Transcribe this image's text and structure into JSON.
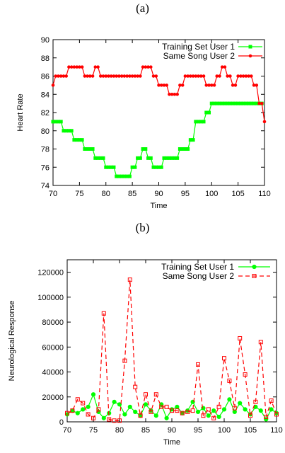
{
  "captions": {
    "top": "(a)",
    "bottom": "(b)"
  },
  "chart_data": [
    {
      "type": "line",
      "xlabel": "Time",
      "ylabel": "Heart Rate",
      "xlim": [
        70,
        110
      ],
      "ylim": [
        74,
        90
      ],
      "xticks": [
        70,
        75,
        80,
        85,
        90,
        95,
        100,
        105,
        110
      ],
      "yticks": [
        74,
        76,
        78,
        80,
        82,
        84,
        86,
        88,
        90
      ],
      "legend_position": "top-right",
      "series": [
        {
          "name": "Training Set User 1",
          "color": "#00ff00",
          "marker": "square-filled",
          "style": "solid",
          "x": [
            70,
            70.5,
            71,
            71.5,
            72,
            72.5,
            73,
            73.5,
            74,
            74.5,
            75,
            75.5,
            76,
            76.5,
            77,
            77.5,
            78,
            78.5,
            79,
            79.5,
            80,
            80.5,
            81,
            81.5,
            82,
            82.5,
            83,
            83.5,
            84,
            84.5,
            85,
            85.5,
            86,
            86.5,
            87,
            87.5,
            88,
            88.5,
            89,
            89.5,
            90,
            90.5,
            91,
            91.5,
            92,
            92.5,
            93,
            93.5,
            94,
            94.5,
            95,
            95.5,
            96,
            96.5,
            97,
            97.5,
            98,
            98.5,
            99,
            99.5,
            100,
            100.5,
            101,
            101.5,
            102,
            102.5,
            103,
            103.5,
            104,
            104.5,
            105,
            105.5,
            106,
            106.5,
            107,
            107.5,
            108,
            108.5,
            109,
            109.5
          ],
          "y": [
            81,
            81,
            81,
            81,
            80,
            80,
            80,
            80,
            79,
            79,
            79,
            79,
            78,
            78,
            78,
            78,
            77,
            77,
            77,
            77,
            76,
            76,
            76,
            76,
            75,
            75,
            75,
            75,
            75,
            75,
            76,
            76,
            77,
            77,
            78,
            78,
            77,
            77,
            76,
            76,
            76,
            76,
            77,
            77,
            77,
            77,
            77,
            77,
            78,
            78,
            78,
            78,
            79,
            79,
            81,
            81,
            81,
            81,
            82,
            82,
            83,
            83,
            83,
            83,
            83,
            83,
            83,
            83,
            83,
            83,
            83,
            83,
            83,
            83,
            83,
            83,
            83,
            83,
            83,
            83
          ]
        },
        {
          "name": "Same Song User 2",
          "color": "#ff0000",
          "marker": "circle",
          "style": "solid",
          "x": [
            70,
            70.5,
            71,
            71.5,
            72,
            72.5,
            73,
            73.5,
            74,
            74.5,
            75,
            75.5,
            76,
            76.5,
            77,
            77.5,
            78,
            78.5,
            79,
            79.5,
            80,
            80.5,
            81,
            81.5,
            82,
            82.5,
            83,
            83.5,
            84,
            84.5,
            85,
            85.5,
            86,
            86.5,
            87,
            87.5,
            88,
            88.5,
            89,
            89.5,
            90,
            90.5,
            91,
            91.5,
            92,
            92.5,
            93,
            93.5,
            94,
            94.5,
            95,
            95.5,
            96,
            96.5,
            97,
            97.5,
            98,
            98.5,
            99,
            99.5,
            100,
            100.5,
            101,
            101.5,
            102,
            102.5,
            103,
            103.5,
            104,
            104.5,
            105,
            105.5,
            106,
            106.5,
            107,
            107.5,
            108,
            108.5,
            109,
            109.5,
            110
          ],
          "y": [
            85,
            86,
            86,
            86,
            86,
            86,
            87,
            87,
            87,
            87,
            87,
            87,
            86,
            86,
            86,
            86,
            87,
            87,
            86,
            86,
            86,
            86,
            86,
            86,
            86,
            86,
            86,
            86,
            86,
            86,
            86,
            86,
            86,
            86,
            87,
            87,
            87,
            87,
            86,
            86,
            85,
            85,
            85,
            85,
            84,
            84,
            84,
            84,
            85,
            85,
            86,
            86,
            86,
            86,
            86,
            86,
            86,
            86,
            85,
            85,
            85,
            85,
            86,
            86,
            87,
            87,
            86,
            86,
            85,
            85,
            86,
            86,
            86,
            86,
            86,
            86,
            85,
            85,
            83,
            83,
            81
          ]
        }
      ]
    },
    {
      "type": "line",
      "xlabel": "Time",
      "ylabel": "Neurological Response",
      "xlim": [
        70,
        110
      ],
      "ylim": [
        0,
        130000
      ],
      "xticks": [
        70,
        75,
        80,
        85,
        90,
        95,
        100,
        105,
        110
      ],
      "yticks": [
        0,
        20000,
        40000,
        60000,
        80000,
        100000,
        120000
      ],
      "legend_position": "top-right",
      "series": [
        {
          "name": "Training Set User 1",
          "color": "#00ff00",
          "marker": "circle-filled",
          "style": "solid",
          "x": [
            70,
            71,
            72,
            73,
            74,
            75,
            76,
            77,
            78,
            79,
            80,
            81,
            82,
            83,
            84,
            85,
            86,
            87,
            88,
            89,
            90,
            91,
            92,
            93,
            94,
            95,
            96,
            97,
            98,
            99,
            100,
            101,
            102,
            103,
            104,
            105,
            106,
            107,
            108,
            109,
            110
          ],
          "y": [
            6000,
            9000,
            7000,
            10000,
            12000,
            22000,
            8000,
            3000,
            7000,
            16000,
            14000,
            6000,
            12000,
            8000,
            5000,
            14000,
            9000,
            5000,
            14000,
            3000,
            10000,
            12000,
            7000,
            9000,
            16000,
            8000,
            11000,
            5000,
            9000,
            4000,
            10000,
            18000,
            8000,
            15000,
            10000,
            6000,
            12000,
            9000,
            2000,
            10000,
            7000
          ]
        },
        {
          "name": "Same Song User 2",
          "color": "#ff0000",
          "marker": "square-open",
          "style": "dashed",
          "x": [
            70,
            71,
            72,
            73,
            74,
            75,
            76,
            77,
            78,
            79,
            80,
            81,
            82,
            83,
            84,
            85,
            86,
            87,
            88,
            89,
            90,
            91,
            92,
            93,
            94,
            95,
            96,
            97,
            98,
            99,
            100,
            101,
            102,
            103,
            104,
            105,
            106,
            107,
            108,
            109,
            110
          ],
          "y": [
            7000,
            9000,
            18000,
            15000,
            6000,
            3000,
            10000,
            87000,
            2000,
            1000,
            1000,
            49000,
            114000,
            28000,
            5000,
            22000,
            8000,
            22000,
            12000,
            12000,
            9000,
            9000,
            7000,
            8000,
            9000,
            46000,
            5000,
            10000,
            3000,
            12000,
            51000,
            33000,
            11000,
            67000,
            38000,
            5000,
            16000,
            64000,
            4000,
            17000,
            6000
          ]
        }
      ]
    }
  ]
}
